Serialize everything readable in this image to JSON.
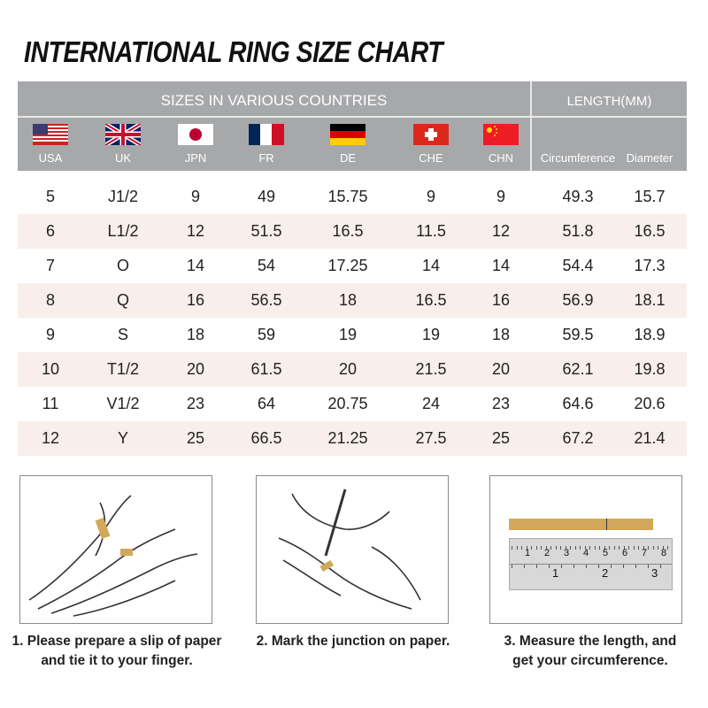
{
  "title": "INTERNATIONAL RING SIZE CHART",
  "header": {
    "sizes": "SIZES IN VARIOUS COUNTRIES",
    "length": "LENGTH(MM)"
  },
  "columns": [
    {
      "label": "USA",
      "flag": "usa-flag"
    },
    {
      "label": "UK",
      "flag": "uk-flag"
    },
    {
      "label": "JPN",
      "flag": "japan-flag"
    },
    {
      "label": "FR",
      "flag": "france-flag"
    },
    {
      "label": "DE",
      "flag": "germany-flag"
    },
    {
      "label": "CHE",
      "flag": "switzerland-flag"
    },
    {
      "label": "CHN",
      "flag": "china-flag"
    },
    {
      "label": "Circumference"
    },
    {
      "label": "Diameter"
    }
  ],
  "rows": [
    [
      "5",
      "J1/2",
      "9",
      "49",
      "15.75",
      "9",
      "9",
      "49.3",
      "15.7"
    ],
    [
      "6",
      "L1/2",
      "12",
      "51.5",
      "16.5",
      "11.5",
      "12",
      "51.8",
      "16.5"
    ],
    [
      "7",
      "O",
      "14",
      "54",
      "17.25",
      "14",
      "14",
      "54.4",
      "17.3"
    ],
    [
      "8",
      "Q",
      "16",
      "56.5",
      "18",
      "16.5",
      "16",
      "56.9",
      "18.1"
    ],
    [
      "9",
      "S",
      "18",
      "59",
      "19",
      "19",
      "18",
      "59.5",
      "18.9"
    ],
    [
      "10",
      "T1/2",
      "20",
      "61.5",
      "20",
      "21.5",
      "20",
      "62.1",
      "19.8"
    ],
    [
      "11",
      "V1/2",
      "23",
      "64",
      "20.75",
      "24",
      "23",
      "64.6",
      "20.6"
    ],
    [
      "12",
      "Y",
      "25",
      "66.5",
      "21.25",
      "27.5",
      "25",
      "67.2",
      "21.4"
    ]
  ],
  "colors": {
    "header_bg": "#a7a8aa",
    "alt_row": "#f8efea",
    "paper": "#d4a85a"
  },
  "steps": [
    {
      "line1": "1. Please prepare a slip of paper",
      "line2": "and tie it to your finger."
    },
    {
      "line1": "2. Mark the junction on paper.",
      "line2": ""
    },
    {
      "line1": "3. Measure the length, and",
      "line2": "get your circumference."
    }
  ],
  "ruler": {
    "top_marks": [
      "1",
      "2",
      "3",
      "4",
      "5",
      "6",
      "7",
      "8"
    ],
    "bottom_marks": [
      "1",
      "2",
      "3"
    ]
  }
}
